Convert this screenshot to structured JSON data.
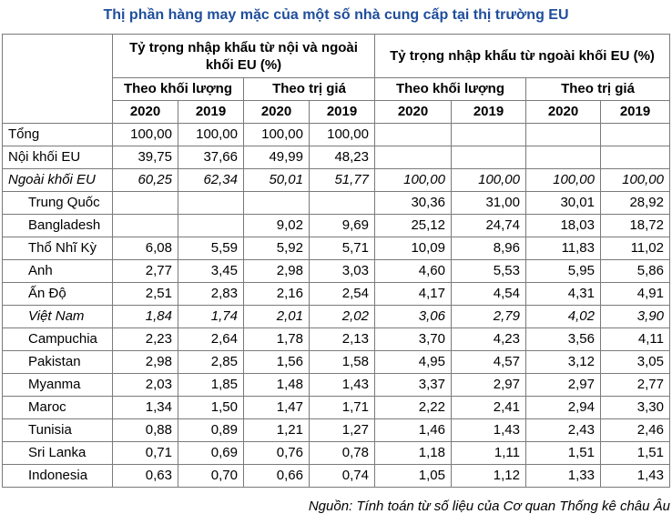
{
  "title": "Thị phần hàng may mặc của một số nhà cung cấp tại thị trường EU",
  "header": {
    "group_a": "Tỷ trọng nhập khẩu từ nội và ngoài khối EU (%)",
    "group_b": "Tỷ trọng nhập khẩu từ ngoài khối EU (%)",
    "volume": "Theo khối lượng",
    "value": "Theo trị giá",
    "years": [
      "2020",
      "2019",
      "2020",
      "2019",
      "2020",
      "2019",
      "2020",
      "2019"
    ]
  },
  "rows": [
    {
      "label": "Tổng",
      "v": [
        "100,00",
        "100,00",
        "100,00",
        "100,00",
        "",
        "",
        "",
        ""
      ]
    },
    {
      "label": "Nội khối EU",
      "v": [
        "39,75",
        "37,66",
        "49,99",
        "48,23",
        "",
        "",
        "",
        ""
      ]
    },
    {
      "label": "Ngoài khối EU",
      "v": [
        "60,25",
        "62,34",
        "50,01",
        "51,77",
        "100,00",
        "100,00",
        "100,00",
        "100,00"
      ]
    },
    {
      "label": "Trung Quốc",
      "v": [
        "",
        "",
        "",
        "",
        "30,36",
        "31,00",
        "30,01",
        "28,92"
      ]
    },
    {
      "label": "Bangladesh",
      "v": [
        "",
        "",
        "9,02",
        "9,69",
        "25,12",
        "24,74",
        "18,03",
        "18,72"
      ]
    },
    {
      "label": "Thổ Nhĩ Kỳ",
      "v": [
        "6,08",
        "5,59",
        "5,92",
        "5,71",
        "10,09",
        "8,96",
        "11,83",
        "11,02"
      ]
    },
    {
      "label": "Anh",
      "v": [
        "2,77",
        "3,45",
        "2,98",
        "3,03",
        "4,60",
        "5,53",
        "5,95",
        "5,86"
      ]
    },
    {
      "label": "Ấn Độ",
      "v": [
        "2,51",
        "2,83",
        "2,16",
        "2,54",
        "4,17",
        "4,54",
        "4,31",
        "4,91"
      ]
    },
    {
      "label": "Việt Nam",
      "v": [
        "1,84",
        "1,74",
        "2,01",
        "2,02",
        "3,06",
        "2,79",
        "4,02",
        "3,90"
      ]
    },
    {
      "label": "Campuchia",
      "v": [
        "2,23",
        "2,64",
        "1,78",
        "2,13",
        "3,70",
        "4,23",
        "3,56",
        "4,11"
      ]
    },
    {
      "label": "Pakistan",
      "v": [
        "2,98",
        "2,85",
        "1,56",
        "1,58",
        "4,95",
        "4,57",
        "3,12",
        "3,05"
      ]
    },
    {
      "label": "Myanma",
      "v": [
        "2,03",
        "1,85",
        "1,48",
        "1,43",
        "3,37",
        "2,97",
        "2,97",
        "2,77"
      ]
    },
    {
      "label": "Maroc",
      "v": [
        "1,34",
        "1,50",
        "1,47",
        "1,71",
        "2,22",
        "2,41",
        "2,94",
        "3,30"
      ]
    },
    {
      "label": "Tunisia",
      "v": [
        "0,88",
        "0,89",
        "1,21",
        "1,27",
        "1,46",
        "1,43",
        "2,43",
        "2,46"
      ]
    },
    {
      "label": "Sri Lanka",
      "v": [
        "0,71",
        "0,69",
        "0,76",
        "0,78",
        "1,18",
        "1,11",
        "1,51",
        "1,51"
      ]
    },
    {
      "label": "Indonesia",
      "v": [
        "0,63",
        "0,70",
        "0,66",
        "0,74",
        "1,05",
        "1,12",
        "1,33",
        "1,43"
      ]
    }
  ],
  "source": "Nguồn: Tính toán từ số liệu của Cơ quan Thống kê châu Âu"
}
